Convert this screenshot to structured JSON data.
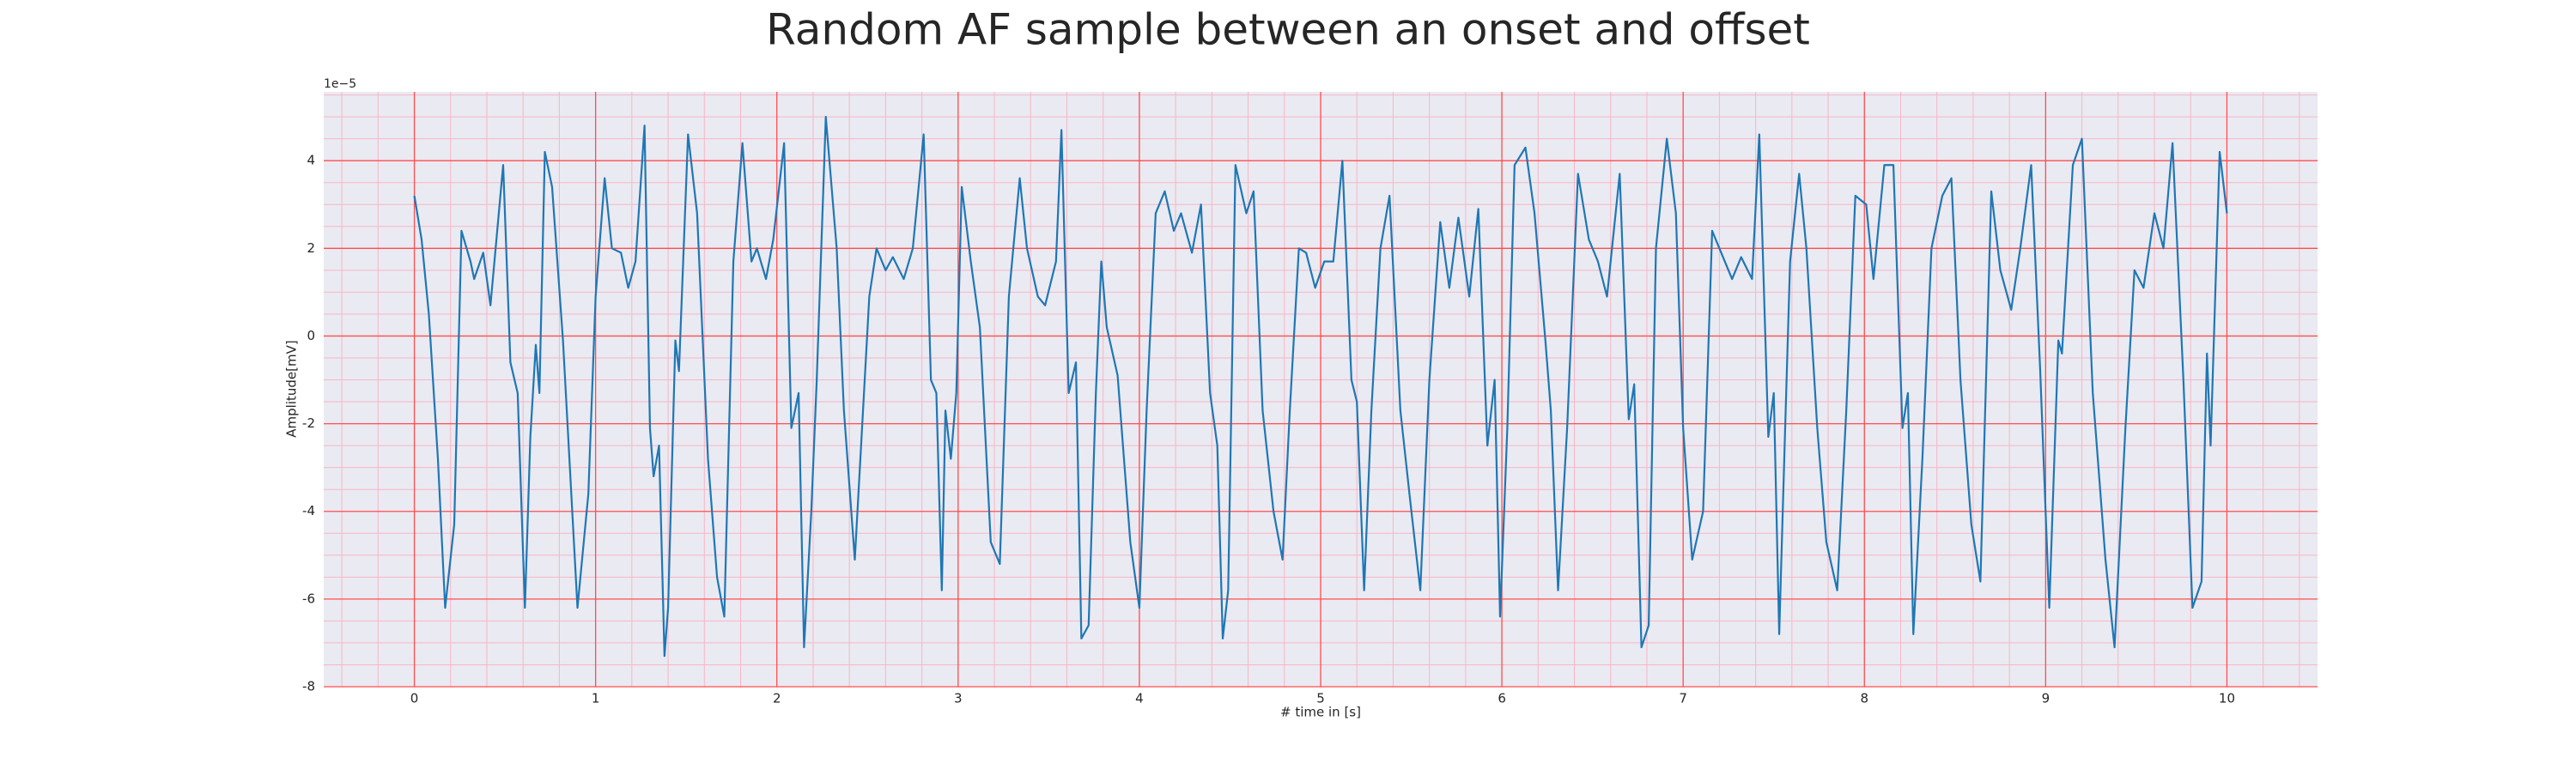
{
  "chart_data": {
    "type": "line",
    "title": "Random AF sample between an onset and offset",
    "xlabel": "# time in [s]",
    "ylabel": "Amplitude[mV]",
    "y_offset_text": "1e−5",
    "color": "#1f77b4",
    "background": "#eaeaf2",
    "grid": true,
    "grid_color": "#ff4d4d",
    "minor_grid_color": "#f7b6c4",
    "xlim": [
      -0.5,
      10.5
    ],
    "ylim": [
      -8,
      5.57
    ],
    "xticks": [
      0,
      1,
      2,
      3,
      4,
      5,
      6,
      7,
      8,
      9,
      10
    ],
    "yticks": [
      -8,
      -6,
      -4,
      -2,
      0,
      2,
      4
    ],
    "xminorticks": [
      -0.4,
      -0.2,
      0.2,
      0.4,
      0.6,
      0.8,
      1.2,
      1.4,
      1.6,
      1.8,
      2.2,
      2.4,
      2.6,
      2.8,
      3.2,
      3.4,
      3.6,
      3.8,
      4.2,
      4.4,
      4.6,
      4.8,
      5.2,
      5.4,
      5.6,
      5.8,
      6.2,
      6.4,
      6.6,
      6.8,
      7.2,
      7.4,
      7.6,
      7.8,
      8.2,
      8.4,
      8.6,
      8.8,
      9.2,
      9.4,
      9.6,
      9.8,
      10.2,
      10.4
    ],
    "yminorticks": [
      -7.5,
      -7,
      -6.5,
      -5.5,
      -5,
      -4.5,
      -3.5,
      -3,
      -2.5,
      -1.5,
      -1,
      -0.5,
      0.5,
      1,
      1.5,
      2.5,
      3,
      3.5,
      4.5,
      5,
      5.5
    ],
    "x": [
      0,
      0.04,
      0.08,
      0.13,
      0.17,
      0.22,
      0.26,
      0.31,
      0.33,
      0.38,
      0.42,
      0.49,
      0.53,
      0.57,
      0.61,
      0.64,
      0.67,
      0.69,
      0.72,
      0.76,
      0.82,
      0.9,
      0.96,
      1.0,
      1.05,
      1.09,
      1.14,
      1.18,
      1.22,
      1.27,
      1.3,
      1.32,
      1.35,
      1.38,
      1.4,
      1.44,
      1.46,
      1.51,
      1.56,
      1.62,
      1.67,
      1.71,
      1.76,
      1.81,
      1.86,
      1.89,
      1.94,
      1.98,
      2.04,
      2.08,
      2.12,
      2.15,
      2.19,
      2.22,
      2.27,
      2.33,
      2.37,
      2.43,
      2.51,
      2.55,
      2.6,
      2.64,
      2.7,
      2.75,
      2.81,
      2.85,
      2.88,
      2.91,
      2.93,
      2.96,
      2.99,
      3.02,
      3.07,
      3.12,
      3.18,
      3.23,
      3.28,
      3.34,
      3.38,
      3.44,
      3.48,
      3.54,
      3.57,
      3.61,
      3.65,
      3.68,
      3.72,
      3.76,
      3.79,
      3.82,
      3.88,
      3.95,
      4.0,
      4.04,
      4.09,
      4.14,
      4.19,
      4.23,
      4.29,
      4.34,
      4.39,
      4.43,
      4.46,
      4.49,
      4.53,
      4.59,
      4.63,
      4.68,
      4.74,
      4.79,
      4.83,
      4.88,
      4.92,
      4.97,
      5.02,
      5.07,
      5.12,
      5.17,
      5.2,
      5.24,
      5.28,
      5.33,
      5.38,
      5.44,
      5.49,
      5.55,
      5.6,
      5.66,
      5.71,
      5.76,
      5.82,
      5.87,
      5.92,
      5.96,
      5.99,
      6.03,
      6.07,
      6.13,
      6.18,
      6.24,
      6.27,
      6.31,
      6.36,
      6.42,
      6.48,
      6.53,
      6.58,
      6.65,
      6.7,
      6.73,
      6.77,
      6.81,
      6.85,
      6.91,
      6.96,
      7.0,
      7.05,
      7.11,
      7.16,
      7.21,
      7.27,
      7.32,
      7.38,
      7.42,
      7.47,
      7.5,
      7.53,
      7.56,
      7.59,
      7.64,
      7.68,
      7.74,
      7.79,
      7.85,
      7.9,
      7.95,
      8.01,
      8.05,
      8.11,
      8.16,
      8.21,
      8.24,
      8.27,
      8.32,
      8.37,
      8.43,
      8.48,
      8.53,
      8.59,
      8.64,
      8.7,
      8.75,
      8.81,
      8.86,
      8.92,
      8.97,
      9.02,
      9.07,
      9.09,
      9.15,
      9.2,
      9.26,
      9.33,
      9.38,
      9.44,
      9.49,
      9.54,
      9.6,
      9.65,
      9.7,
      9.76,
      9.81,
      9.86,
      9.89,
      9.91,
      9.96,
      10.0
    ],
    "values": [
      3.2,
      2.2,
      0.5,
      -2.8,
      -6.2,
      -4.3,
      2.4,
      1.7,
      1.3,
      1.9,
      0.7,
      3.9,
      -0.6,
      -1.3,
      -6.2,
      -2.3,
      -0.2,
      -1.3,
      4.2,
      3.4,
      -0.1,
      -6.2,
      -3.6,
      0.9,
      3.6,
      2.0,
      1.9,
      1.1,
      1.7,
      4.8,
      -2.1,
      -3.2,
      -2.5,
      -7.3,
      -6.2,
      -0.1,
      -0.8,
      4.6,
      2.8,
      -2.8,
      -5.5,
      -6.4,
      1.7,
      4.4,
      1.7,
      2.0,
      1.3,
      2.2,
      4.4,
      -2.1,
      -1.3,
      -7.1,
      -4.0,
      -1.0,
      5.0,
      2.0,
      -1.7,
      -5.1,
      0.9,
      2.0,
      1.5,
      1.8,
      1.3,
      2.0,
      4.6,
      -1.0,
      -1.3,
      -5.8,
      -1.7,
      -2.8,
      -1.3,
      3.4,
      1.7,
      0.2,
      -4.7,
      -5.2,
      0.9,
      3.6,
      2.0,
      0.9,
      0.7,
      1.7,
      4.7,
      -1.3,
      -0.6,
      -6.9,
      -6.6,
      -1.3,
      1.7,
      0.2,
      -0.9,
      -4.7,
      -6.2,
      -1.7,
      2.8,
      3.3,
      2.4,
      2.8,
      1.9,
      3.0,
      -1.3,
      -2.5,
      -6.9,
      -5.8,
      3.9,
      2.8,
      3.3,
      -1.7,
      -4.0,
      -5.1,
      -1.7,
      2.0,
      1.9,
      1.1,
      1.7,
      1.7,
      4.0,
      -1.0,
      -1.5,
      -5.8,
      -1.7,
      2.0,
      3.2,
      -1.7,
      -3.6,
      -5.8,
      -1.0,
      2.6,
      1.1,
      2.7,
      0.9,
      2.9,
      -2.5,
      -1.0,
      -6.4,
      -2.1,
      3.9,
      4.3,
      2.8,
      -0.1,
      -1.7,
      -5.8,
      -2.1,
      3.7,
      2.2,
      1.7,
      0.9,
      3.7,
      -1.9,
      -1.1,
      -7.1,
      -6.6,
      2.0,
      4.5,
      2.8,
      -2.1,
      -5.1,
      -4.0,
      2.4,
      1.9,
      1.3,
      1.8,
      1.3,
      4.6,
      -2.3,
      -1.3,
      -6.8,
      -2.5,
      1.7,
      3.7,
      2.0,
      -2.1,
      -4.7,
      -5.8,
      -1.7,
      3.2,
      3.0,
      1.3,
      3.9,
      3.9,
      -2.1,
      -1.3,
      -6.8,
      -2.8,
      2.0,
      3.2,
      3.6,
      -1.0,
      -4.3,
      -5.6,
      3.3,
      1.5,
      0.6,
      2.0,
      3.9,
      -0.8,
      -6.2,
      -0.1,
      -0.4,
      3.9,
      4.5,
      -1.3,
      -5.1,
      -7.1,
      -2.1,
      1.5,
      1.1,
      2.8,
      2.0,
      4.4,
      -1.0,
      -6.2,
      -5.6,
      -0.4,
      -2.5,
      4.2,
      2.8
    ]
  }
}
